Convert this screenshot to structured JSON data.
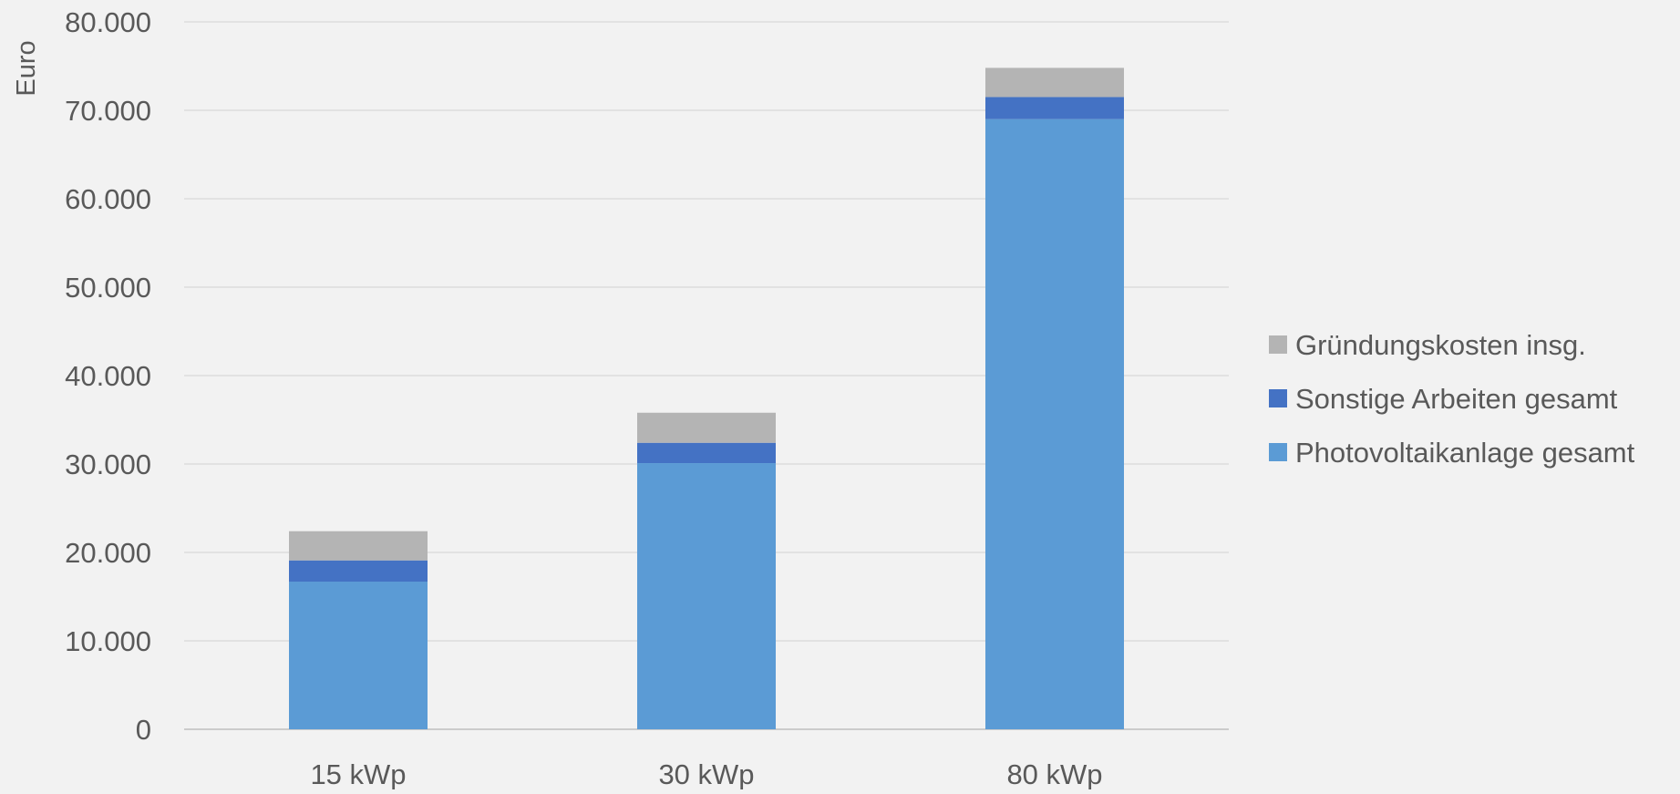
{
  "chart_data": {
    "type": "bar",
    "stacked": true,
    "categories": [
      "15 kWp",
      "30 kWp",
      "80 kWp"
    ],
    "series": [
      {
        "name": "Photovoltaikanlage gesamt",
        "color": "#5b9bd5",
        "values": [
          16700,
          30100,
          69000
        ]
      },
      {
        "name": "Sonstige Arbeiten gesamt",
        "color": "#4472c4",
        "values": [
          2400,
          2300,
          2500
        ]
      },
      {
        "name": "Gründungskosten insg.",
        "color": "#b4b4b4",
        "values": [
          3300,
          3400,
          3300
        ]
      }
    ],
    "legend_order": [
      "Gründungskosten insg.",
      "Sonstige Arbeiten gesamt",
      "Photovoltaikanlage gesamt"
    ],
    "ylabel": "Euro",
    "xlabel": "",
    "ylim": [
      0,
      80000
    ],
    "yticks": [
      0,
      10000,
      20000,
      30000,
      40000,
      50000,
      60000,
      70000,
      80000
    ],
    "ytick_labels": [
      "0",
      "10.000",
      "20.000",
      "30.000",
      "40.000",
      "50.000",
      "60.000",
      "70.000",
      "80.000"
    ],
    "grid": true,
    "legend_position": "right"
  }
}
